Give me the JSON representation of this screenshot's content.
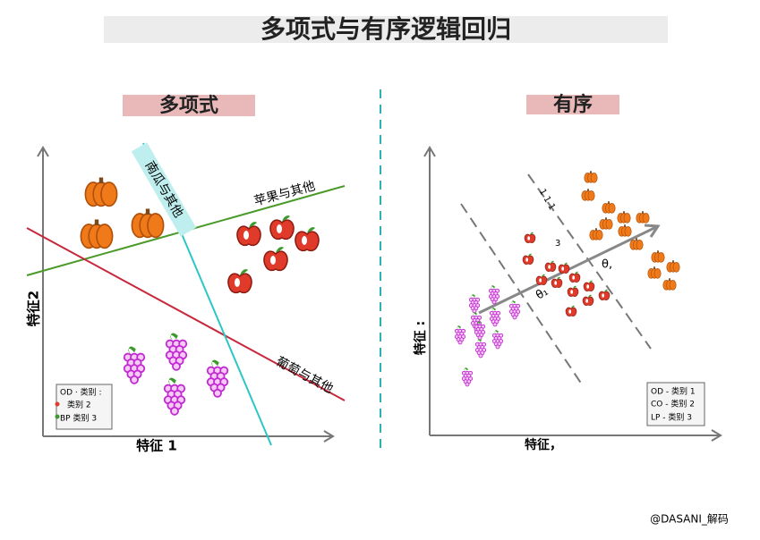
{
  "header": {
    "title": "多项式与有序逻辑回归"
  },
  "multinomial": {
    "title": "多项式",
    "y_axis": "特征2",
    "x_axis": "特征 1",
    "boundaries": [
      "南瓜与其他",
      "苹果与其他",
      "葡萄与其他"
    ],
    "legend": [
      "OD · 类别 :",
      "类别 2",
      "BP  类别 3"
    ]
  },
  "ordinal": {
    "title": "有序",
    "y_axis": "特征 :",
    "x_axis": "特征，",
    "thresholds": [
      "θ₁",
      "θ,",
      "1 1 1",
      "3"
    ],
    "legend": [
      "OD - 类别 1",
      "CO - 类别 2",
      "LP - 类别 3"
    ]
  },
  "footer": {
    "credit": "@DASANI_解码"
  }
}
